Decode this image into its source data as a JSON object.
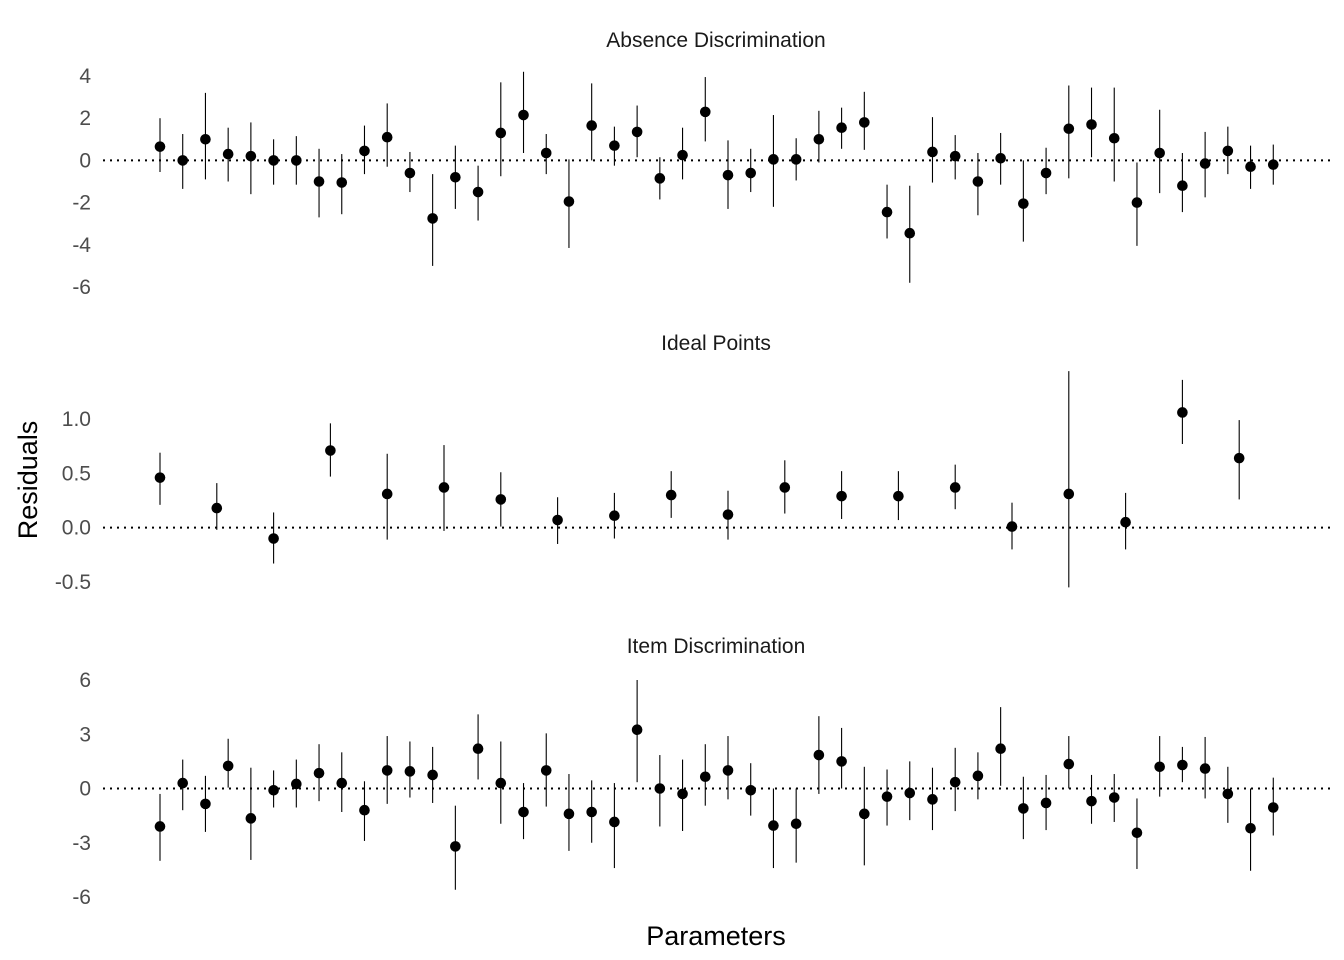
{
  "chart_data": {
    "type": "scatter",
    "xlabel": "Parameters",
    "ylabel": "Residuals",
    "panels": [
      {
        "title": "Absence Discrimination",
        "ylim": [
          -6.5,
          4.5
        ],
        "yticks": [
          -6,
          -4,
          -2,
          0,
          2,
          4
        ],
        "tick_labels": [
          "-6",
          "-4",
          "-2",
          "0",
          "2",
          "4"
        ],
        "points": [
          {
            "x": 1,
            "y": 0.65,
            "lo": -0.55,
            "hi": 2.0
          },
          {
            "x": 2,
            "y": 0.0,
            "lo": -1.35,
            "hi": 1.25
          },
          {
            "x": 3,
            "y": 1.0,
            "lo": -0.9,
            "hi": 3.2
          },
          {
            "x": 4,
            "y": 0.3,
            "lo": -1.0,
            "hi": 1.55
          },
          {
            "x": 5,
            "y": 0.2,
            "lo": -1.6,
            "hi": 1.8
          },
          {
            "x": 6,
            "y": 0.0,
            "lo": -1.15,
            "hi": 1.0
          },
          {
            "x": 7,
            "y": 0.0,
            "lo": -1.15,
            "hi": 1.15
          },
          {
            "x": 8,
            "y": -1.0,
            "lo": -2.7,
            "hi": 0.55
          },
          {
            "x": 9,
            "y": -1.05,
            "lo": -2.55,
            "hi": 0.3
          },
          {
            "x": 10,
            "y": 0.45,
            "lo": -0.65,
            "hi": 1.65
          },
          {
            "x": 11,
            "y": 1.1,
            "lo": -0.3,
            "hi": 2.7
          },
          {
            "x": 12,
            "y": -0.6,
            "lo": -1.5,
            "hi": 0.4
          },
          {
            "x": 13,
            "y": -2.75,
            "lo": -5.0,
            "hi": -0.65
          },
          {
            "x": 14,
            "y": -0.8,
            "lo": -2.3,
            "hi": 0.7
          },
          {
            "x": 15,
            "y": -1.5,
            "lo": -2.85,
            "hi": -0.25
          },
          {
            "x": 16,
            "y": 1.3,
            "lo": -0.75,
            "hi": 3.7
          },
          {
            "x": 17,
            "y": 2.15,
            "lo": 0.35,
            "hi": 4.2
          },
          {
            "x": 18,
            "y": 0.35,
            "lo": -0.65,
            "hi": 1.25
          },
          {
            "x": 19,
            "y": -1.95,
            "lo": -4.15,
            "hi": 0.05
          },
          {
            "x": 20,
            "y": 1.65,
            "lo": 0.0,
            "hi": 3.65
          },
          {
            "x": 21,
            "y": 0.7,
            "lo": -0.25,
            "hi": 1.6
          },
          {
            "x": 22,
            "y": 1.35,
            "lo": 0.15,
            "hi": 2.6
          },
          {
            "x": 23,
            "y": -0.85,
            "lo": -1.85,
            "hi": 0.15
          },
          {
            "x": 24,
            "y": 0.25,
            "lo": -0.9,
            "hi": 1.55
          },
          {
            "x": 25,
            "y": 2.3,
            "lo": 0.9,
            "hi": 3.95
          },
          {
            "x": 26,
            "y": -0.7,
            "lo": -2.3,
            "hi": 0.95
          },
          {
            "x": 27,
            "y": -0.6,
            "lo": -1.5,
            "hi": 0.55
          },
          {
            "x": 28,
            "y": 0.05,
            "lo": -2.2,
            "hi": 2.15
          },
          {
            "x": 29,
            "y": 0.05,
            "lo": -0.95,
            "hi": 1.05
          },
          {
            "x": 30,
            "y": 1.0,
            "lo": -0.1,
            "hi": 2.35
          },
          {
            "x": 31,
            "y": 1.55,
            "lo": 0.55,
            "hi": 2.5
          },
          {
            "x": 32,
            "y": 1.8,
            "lo": 0.5,
            "hi": 3.25
          },
          {
            "x": 33,
            "y": -2.45,
            "lo": -3.7,
            "hi": -1.15
          },
          {
            "x": 34,
            "y": -3.45,
            "lo": -5.8,
            "hi": -1.2
          },
          {
            "x": 35,
            "y": 0.4,
            "lo": -1.05,
            "hi": 2.05
          },
          {
            "x": 36,
            "y": 0.2,
            "lo": -0.9,
            "hi": 1.2
          },
          {
            "x": 37,
            "y": -1.0,
            "lo": -2.6,
            "hi": 0.35
          },
          {
            "x": 38,
            "y": 0.1,
            "lo": -1.15,
            "hi": 1.3
          },
          {
            "x": 39,
            "y": -2.05,
            "lo": -3.85,
            "hi": 0.0
          },
          {
            "x": 40,
            "y": -0.6,
            "lo": -1.6,
            "hi": 0.6
          },
          {
            "x": 41,
            "y": 1.5,
            "lo": -0.85,
            "hi": 3.55
          },
          {
            "x": 42,
            "y": 1.7,
            "lo": 0.15,
            "hi": 3.45
          },
          {
            "x": 43,
            "y": 1.05,
            "lo": -1.0,
            "hi": 3.45
          },
          {
            "x": 44,
            "y": -2.0,
            "lo": -4.05,
            "hi": -0.1
          },
          {
            "x": 45,
            "y": 0.35,
            "lo": -1.55,
            "hi": 2.4
          },
          {
            "x": 46,
            "y": -1.2,
            "lo": -2.45,
            "hi": 0.35
          },
          {
            "x": 47,
            "y": -0.15,
            "lo": -1.75,
            "hi": 1.35
          },
          {
            "x": 48,
            "y": 0.45,
            "lo": -0.65,
            "hi": 1.6
          },
          {
            "x": 49,
            "y": -0.3,
            "lo": -1.35,
            "hi": 0.7
          },
          {
            "x": 50,
            "y": -0.2,
            "lo": -1.15,
            "hi": 0.75
          }
        ]
      },
      {
        "title": "Ideal Points",
        "ylim": [
          -0.65,
          1.45
        ],
        "yticks": [
          -0.5,
          0.0,
          0.5,
          1.0
        ],
        "tick_labels": [
          "-0.5",
          "0.0",
          "0.5",
          "1.0"
        ],
        "points": [
          {
            "x": 1,
            "y": 0.46,
            "lo": 0.21,
            "hi": 0.69
          },
          {
            "x": 3.5,
            "y": 0.18,
            "lo": -0.02,
            "hi": 0.41
          },
          {
            "x": 6,
            "y": -0.1,
            "lo": -0.33,
            "hi": 0.14
          },
          {
            "x": 8.5,
            "y": 0.71,
            "lo": 0.47,
            "hi": 0.96
          },
          {
            "x": 11,
            "y": 0.31,
            "lo": -0.11,
            "hi": 0.68
          },
          {
            "x": 13.5,
            "y": 0.37,
            "lo": -0.03,
            "hi": 0.76
          },
          {
            "x": 16,
            "y": 0.26,
            "lo": 0.01,
            "hi": 0.51
          },
          {
            "x": 18.5,
            "y": 0.07,
            "lo": -0.15,
            "hi": 0.28
          },
          {
            "x": 21,
            "y": 0.11,
            "lo": -0.1,
            "hi": 0.32
          },
          {
            "x": 23.5,
            "y": 0.3,
            "lo": 0.09,
            "hi": 0.52
          },
          {
            "x": 26,
            "y": 0.12,
            "lo": -0.11,
            "hi": 0.34
          },
          {
            "x": 28.5,
            "y": 0.37,
            "lo": 0.13,
            "hi": 0.62
          },
          {
            "x": 31,
            "y": 0.29,
            "lo": 0.08,
            "hi": 0.52
          },
          {
            "x": 33.5,
            "y": 0.29,
            "lo": 0.07,
            "hi": 0.52
          },
          {
            "x": 36,
            "y": 0.37,
            "lo": 0.17,
            "hi": 0.58
          },
          {
            "x": 38.5,
            "y": 0.01,
            "lo": -0.2,
            "hi": 0.23
          },
          {
            "x": 41,
            "y": 0.31,
            "lo": -0.55,
            "hi": 1.44
          },
          {
            "x": 43.5,
            "y": 0.05,
            "lo": -0.2,
            "hi": 0.32
          },
          {
            "x": 46,
            "y": 1.06,
            "lo": 0.77,
            "hi": 1.36
          },
          {
            "x": 48.5,
            "y": 0.64,
            "lo": 0.26,
            "hi": 0.99
          }
        ]
      },
      {
        "title": "Item Discrimination",
        "ylim": [
          -6.5,
          6.5
        ],
        "yticks": [
          -6,
          -3,
          0,
          3,
          6
        ],
        "tick_labels": [
          "-6",
          "-3",
          "0",
          "3",
          "6"
        ],
        "points": [
          {
            "x": 1,
            "y": -2.1,
            "lo": -4.0,
            "hi": -0.3
          },
          {
            "x": 2,
            "y": 0.3,
            "lo": -1.2,
            "hi": 1.6
          },
          {
            "x": 3,
            "y": -0.85,
            "lo": -2.4,
            "hi": 0.7
          },
          {
            "x": 4,
            "y": 1.25,
            "lo": 0.05,
            "hi": 2.75
          },
          {
            "x": 5,
            "y": -1.65,
            "lo": -3.95,
            "hi": 1.15
          },
          {
            "x": 6,
            "y": -0.1,
            "lo": -1.05,
            "hi": 1.0
          },
          {
            "x": 7,
            "y": 0.25,
            "lo": -1.05,
            "hi": 1.6
          },
          {
            "x": 8,
            "y": 0.85,
            "lo": -0.7,
            "hi": 2.45
          },
          {
            "x": 9,
            "y": 0.3,
            "lo": -1.3,
            "hi": 2.0
          },
          {
            "x": 10,
            "y": -1.2,
            "lo": -2.9,
            "hi": 0.4
          },
          {
            "x": 11,
            "y": 1.0,
            "lo": -0.85,
            "hi": 2.9
          },
          {
            "x": 12,
            "y": 0.95,
            "lo": -0.5,
            "hi": 2.6
          },
          {
            "x": 13,
            "y": 0.75,
            "lo": -0.8,
            "hi": 2.3
          },
          {
            "x": 14,
            "y": -3.2,
            "lo": -5.6,
            "hi": -0.95
          },
          {
            "x": 15,
            "y": 2.2,
            "lo": 0.5,
            "hi": 4.1
          },
          {
            "x": 16,
            "y": 0.3,
            "lo": -1.95,
            "hi": 2.6
          },
          {
            "x": 17,
            "y": -1.3,
            "lo": -2.8,
            "hi": 0.3
          },
          {
            "x": 18,
            "y": 1.0,
            "lo": -1.0,
            "hi": 3.05
          },
          {
            "x": 19,
            "y": -1.4,
            "lo": -3.45,
            "hi": 0.8
          },
          {
            "x": 20,
            "y": -1.3,
            "lo": -3.0,
            "hi": 0.45
          },
          {
            "x": 21,
            "y": -1.85,
            "lo": -4.4,
            "hi": 0.3
          },
          {
            "x": 22,
            "y": 3.25,
            "lo": 0.35,
            "hi": 6.0
          },
          {
            "x": 23,
            "y": 0.0,
            "lo": -2.1,
            "hi": 1.85
          },
          {
            "x": 24,
            "y": -0.3,
            "lo": -2.35,
            "hi": 1.6
          },
          {
            "x": 25,
            "y": 0.65,
            "lo": -0.95,
            "hi": 2.45
          },
          {
            "x": 26,
            "y": 1.0,
            "lo": -0.6,
            "hi": 2.9
          },
          {
            "x": 27,
            "y": -0.1,
            "lo": -1.5,
            "hi": 1.4
          },
          {
            "x": 28,
            "y": -2.05,
            "lo": -4.4,
            "hi": 0.0
          },
          {
            "x": 29,
            "y": -1.95,
            "lo": -4.1,
            "hi": 0.0
          },
          {
            "x": 30,
            "y": 1.85,
            "lo": -0.3,
            "hi": 4.0
          },
          {
            "x": 31,
            "y": 1.5,
            "lo": 0.0,
            "hi": 3.35
          },
          {
            "x": 32,
            "y": -1.4,
            "lo": -4.25,
            "hi": 1.2
          },
          {
            "x": 33,
            "y": -0.45,
            "lo": -2.05,
            "hi": 1.05
          },
          {
            "x": 34,
            "y": -0.25,
            "lo": -1.75,
            "hi": 1.5
          },
          {
            "x": 35,
            "y": -0.6,
            "lo": -2.3,
            "hi": 1.15
          },
          {
            "x": 36,
            "y": 0.35,
            "lo": -1.25,
            "hi": 2.25
          },
          {
            "x": 37,
            "y": 0.7,
            "lo": -0.6,
            "hi": 2.0
          },
          {
            "x": 38,
            "y": 2.2,
            "lo": 0.15,
            "hi": 4.5
          },
          {
            "x": 39,
            "y": -1.1,
            "lo": -2.8,
            "hi": 0.65
          },
          {
            "x": 40,
            "y": -0.8,
            "lo": -2.3,
            "hi": 0.75
          },
          {
            "x": 41,
            "y": 1.35,
            "lo": 0.0,
            "hi": 2.9
          },
          {
            "x": 42,
            "y": -0.7,
            "lo": -1.95,
            "hi": 0.75
          },
          {
            "x": 43,
            "y": -0.5,
            "lo": -1.85,
            "hi": 0.8
          },
          {
            "x": 44,
            "y": -2.45,
            "lo": -4.45,
            "hi": -0.55
          },
          {
            "x": 45,
            "y": 1.2,
            "lo": -0.45,
            "hi": 2.9
          },
          {
            "x": 46,
            "y": 1.3,
            "lo": 0.35,
            "hi": 2.3
          },
          {
            "x": 47,
            "y": 1.1,
            "lo": -0.55,
            "hi": 2.85
          },
          {
            "x": 48,
            "y": -0.3,
            "lo": -1.9,
            "hi": 1.2
          },
          {
            "x": 49,
            "y": -2.2,
            "lo": -4.55,
            "hi": 0.0
          },
          {
            "x": 50,
            "y": -1.05,
            "lo": -2.6,
            "hi": 0.6
          }
        ]
      }
    ]
  }
}
